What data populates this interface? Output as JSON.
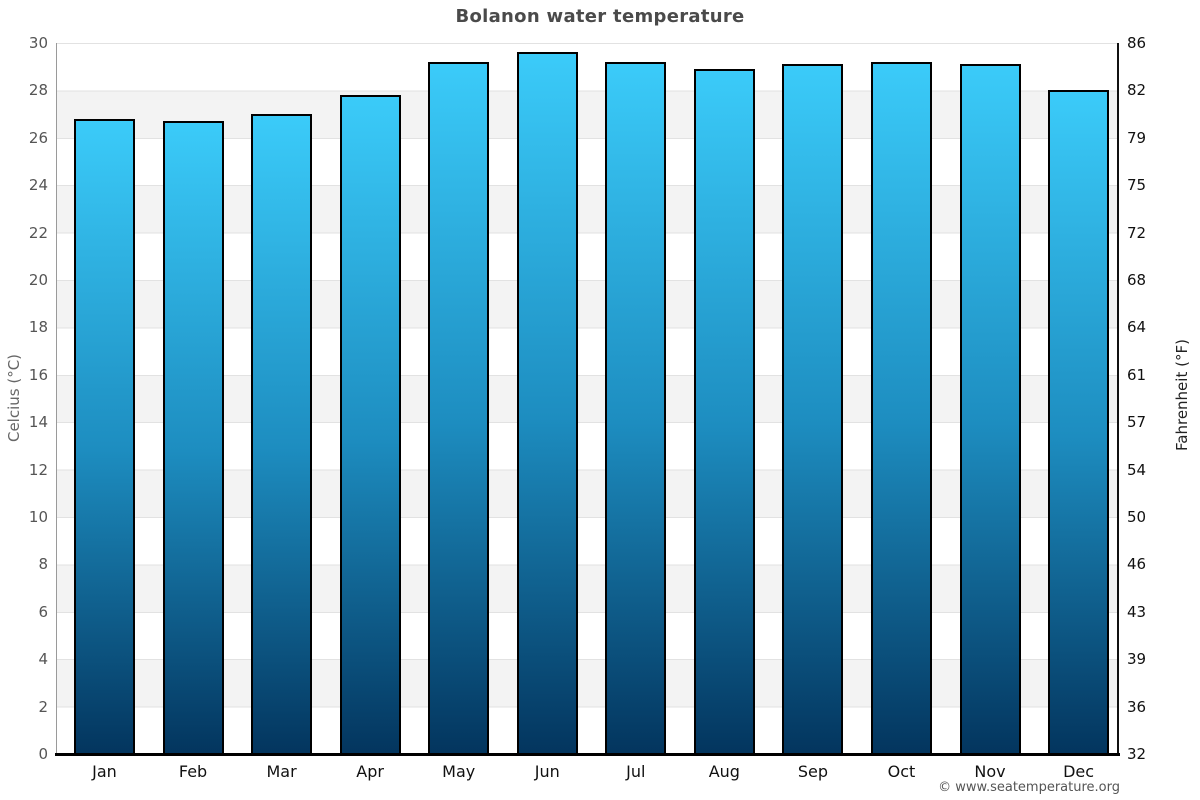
{
  "title": "Bolanon water temperature",
  "footer": "© www.seatemperature.org",
  "axes": {
    "left_label": "Celcius (°C)",
    "right_label": "Fahrenheit (°F)"
  },
  "chart_data": {
    "type": "bar",
    "title": "Bolanon water temperature",
    "categories": [
      "Jan",
      "Feb",
      "Mar",
      "Apr",
      "May",
      "Jun",
      "Jul",
      "Aug",
      "Sep",
      "Oct",
      "Nov",
      "Dec"
    ],
    "values": [
      26.8,
      26.7,
      27.0,
      27.8,
      29.2,
      29.6,
      29.2,
      28.9,
      29.1,
      29.2,
      29.1,
      28.0
    ],
    "unit": "°C",
    "xlabel": "",
    "ylabel_left": "Celcius (°C)",
    "ylabel_right": "Fahrenheit (°F)",
    "ylim": [
      0,
      30
    ],
    "celsius_ticks": [
      30,
      28,
      26,
      24,
      22,
      20,
      18,
      16,
      14,
      12,
      10,
      8,
      6,
      4,
      2,
      0
    ],
    "fahrenheit_ticks": [
      86,
      82,
      79,
      75,
      72,
      68,
      64,
      61,
      57,
      54,
      50,
      46,
      43,
      39,
      36,
      32
    ],
    "grid": true,
    "legend_position": "none",
    "band_colors": [
      "#ffffff",
      "#f3f3f3"
    ],
    "gridline_color": "#e2e2e2",
    "bar_gradient_top": "#3bcbf9",
    "bar_gradient_mid": "#1d8dc0",
    "bar_gradient_bottom": "#03355e",
    "bar_border_color": "#000000"
  }
}
